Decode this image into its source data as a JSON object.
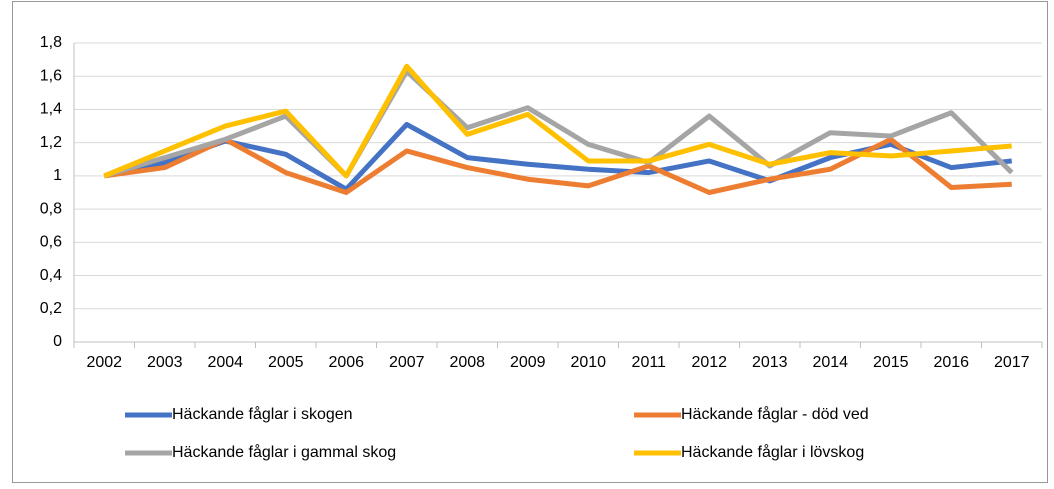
{
  "chart_data": {
    "type": "line",
    "categories": [
      "2002",
      "2003",
      "2004",
      "2005",
      "2006",
      "2007",
      "2008",
      "2009",
      "2010",
      "2011",
      "2012",
      "2013",
      "2014",
      "2015",
      "2016",
      "2017"
    ],
    "series": [
      {
        "name": "Häckande fåglar i skogen",
        "color": "#4472c4",
        "values": [
          1.0,
          1.08,
          1.21,
          1.13,
          0.92,
          1.31,
          1.11,
          1.07,
          1.04,
          1.02,
          1.09,
          0.97,
          1.11,
          1.19,
          1.05,
          1.09
        ]
      },
      {
        "name": "Häckande fåglar - död ved",
        "color": "#ed7d31",
        "values": [
          1.0,
          1.05,
          1.22,
          1.02,
          0.9,
          1.15,
          1.05,
          0.98,
          0.94,
          1.06,
          0.9,
          0.98,
          1.04,
          1.22,
          0.93,
          0.95
        ]
      },
      {
        "name": "Häckande fåglar i gammal skog",
        "color": "#a5a5a5",
        "values": [
          1.0,
          1.11,
          1.22,
          1.36,
          1.0,
          1.63,
          1.29,
          1.41,
          1.19,
          1.08,
          1.36,
          1.06,
          1.26,
          1.24,
          1.38,
          1.02
        ]
      },
      {
        "name": "Häckande fåglar i lövskog",
        "color": "#ffc000",
        "values": [
          1.0,
          1.15,
          1.3,
          1.39,
          1.0,
          1.66,
          1.25,
          1.37,
          1.09,
          1.09,
          1.19,
          1.07,
          1.14,
          1.12,
          1.15,
          1.18
        ]
      }
    ],
    "ylim": [
      0,
      1.8
    ],
    "yticks": [
      0,
      {
        "value": 0.2,
        "label": "0,2"
      },
      {
        "value": 0.4,
        "label": "0,4"
      },
      {
        "value": 0.6,
        "label": "0,6"
      },
      {
        "value": 0.8,
        "label": "0,8"
      },
      1,
      {
        "value": 1.2,
        "label": "1,2"
      },
      {
        "value": 1.4,
        "label": "1,4"
      },
      {
        "value": 1.6,
        "label": "1,6"
      },
      {
        "value": 1.8,
        "label": "1,8"
      }
    ],
    "grid": true,
    "legend": "bottom"
  }
}
